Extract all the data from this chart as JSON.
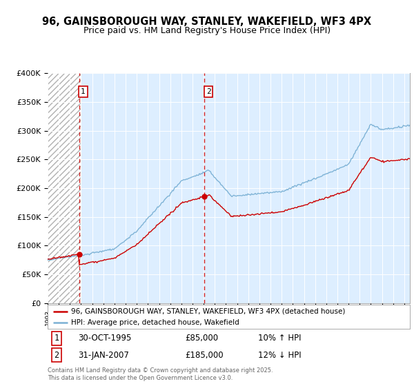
{
  "title_line1": "96, GAINSBOROUGH WAY, STANLEY, WAKEFIELD, WF3 4PX",
  "title_line2": "Price paid vs. HM Land Registry's House Price Index (HPI)",
  "background_color": "#ffffff",
  "plot_bg_color": "#ddeeff",
  "hatch_region_end": 1996.0,
  "grid_color": "#ffffff",
  "sale1": {
    "date_str": "30-OCT-1995",
    "date_num": 1995.833,
    "price": 85000,
    "label": "1",
    "hpi_pct": "10% ↑ HPI"
  },
  "sale2": {
    "date_str": "31-JAN-2007",
    "date_num": 2007.083,
    "price": 185000,
    "label": "2",
    "hpi_pct": "12% ↓ HPI"
  },
  "legend_line1": "96, GAINSBOROUGH WAY, STANLEY, WAKEFIELD, WF3 4PX (detached house)",
  "legend_line2": "HPI: Average price, detached house, Wakefield",
  "footnote": "Contains HM Land Registry data © Crown copyright and database right 2025.\nThis data is licensed under the Open Government Licence v3.0.",
  "xmin": 1993,
  "xmax": 2025.5,
  "ymin": 0,
  "ymax": 400000,
  "red_color": "#cc0000",
  "blue_color": "#7ab0d4"
}
